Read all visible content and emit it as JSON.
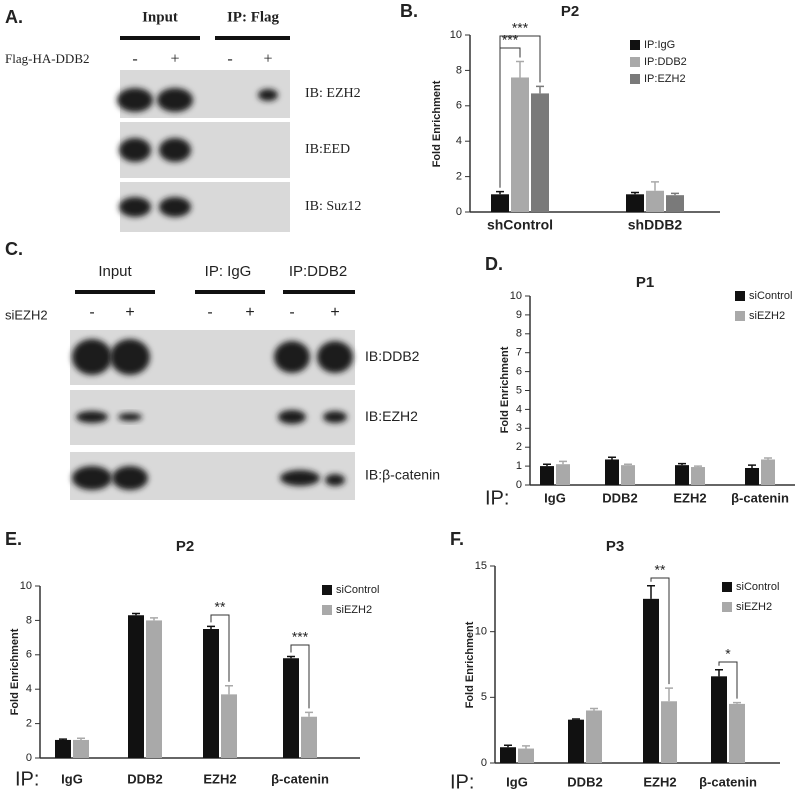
{
  "blots": [
    {
      "label": "A.",
      "groups": [
        "Input",
        "IP: Flag"
      ],
      "condition": "Flag-HA-DDB2",
      "signs": [
        "-",
        "+",
        "-",
        "+"
      ],
      "antibodies": [
        "IB: EZH2",
        "IB:EED",
        "IB: Suz12"
      ]
    },
    {
      "label": "C.",
      "groups": [
        "Input",
        "IP: IgG",
        "IP:DDB2"
      ],
      "condition": "siEZH2",
      "signs": [
        "-",
        "+",
        "-",
        "+",
        "-",
        "+"
      ],
      "antibodies": [
        "IB:DDB2",
        "IB:EZH2",
        "IB:β-catenin"
      ]
    }
  ],
  "chart_data": [
    {
      "label": "B.",
      "type": "bar",
      "title": "P2",
      "ylabel": "Fold Enrichment",
      "categories": [
        "shControl",
        "shDDB2"
      ],
      "series": [
        {
          "name": "IP:IgG",
          "color": "#111111",
          "values": [
            1.0,
            1.0
          ],
          "errors": [
            0.15,
            0.1
          ]
        },
        {
          "name": "IP:DDB2",
          "color": "#a9a9a9",
          "values": [
            7.6,
            1.2
          ],
          "errors": [
            0.9,
            0.5
          ]
        },
        {
          "name": "IP:EZH2",
          "color": "#7a7a7a",
          "values": [
            6.7,
            0.95
          ],
          "errors": [
            0.4,
            0.1
          ]
        }
      ],
      "ylim": [
        0,
        10
      ],
      "yticks": [
        0,
        2,
        4,
        6,
        8,
        10
      ],
      "annotations": [
        "***",
        "***"
      ],
      "legend": "upper right"
    },
    {
      "label": "D.",
      "type": "bar",
      "title": "P1",
      "ylabel": "Fold Enrichment",
      "xlabel": "IP:",
      "categories": [
        "IgG",
        "DDB2",
        "EZH2",
        "β-catenin"
      ],
      "series": [
        {
          "name": "siControl",
          "color": "#111111",
          "values": [
            1.0,
            1.35,
            1.05,
            0.9
          ],
          "errors": [
            0.1,
            0.12,
            0.08,
            0.15
          ]
        },
        {
          "name": "siEZH2",
          "color": "#a9a9a9",
          "values": [
            1.1,
            1.05,
            0.95,
            1.35
          ],
          "errors": [
            0.15,
            0.05,
            0.05,
            0.08
          ]
        }
      ],
      "ylim": [
        0,
        10
      ],
      "yticks": [
        0,
        1,
        2,
        3,
        4,
        5,
        6,
        7,
        8,
        9,
        10
      ],
      "annotations": [],
      "legend": "upper right"
    },
    {
      "label": "E.",
      "type": "bar",
      "title": "P2",
      "ylabel": "Fold Enrichment",
      "xlabel": "IP:",
      "categories": [
        "IgG",
        "DDB2",
        "EZH2",
        "β-catenin"
      ],
      "series": [
        {
          "name": "siControl",
          "color": "#111111",
          "values": [
            1.05,
            8.3,
            7.5,
            5.8
          ],
          "errors": [
            0.05,
            0.1,
            0.15,
            0.1
          ]
        },
        {
          "name": "siEZH2",
          "color": "#a9a9a9",
          "values": [
            1.05,
            8.0,
            3.7,
            2.4
          ],
          "errors": [
            0.1,
            0.15,
            0.5,
            0.25
          ]
        }
      ],
      "ylim": [
        0,
        10
      ],
      "yticks": [
        0,
        2,
        4,
        6,
        8,
        10
      ],
      "annotations": [
        "**",
        "***"
      ],
      "legend": "upper right"
    },
    {
      "label": "F.",
      "type": "bar",
      "title": "P3",
      "ylabel": "Fold Enrichment",
      "xlabel": "IP:",
      "categories": [
        "IgG",
        "DDB2",
        "EZH2",
        "β-catenin"
      ],
      "series": [
        {
          "name": "siControl",
          "color": "#111111",
          "values": [
            1.2,
            3.3,
            12.5,
            6.6
          ],
          "errors": [
            0.15,
            0.05,
            1.0,
            0.5
          ]
        },
        {
          "name": "siEZH2",
          "color": "#a9a9a9",
          "values": [
            1.1,
            4.0,
            4.7,
            4.5
          ],
          "errors": [
            0.2,
            0.15,
            1.0,
            0.1
          ]
        }
      ],
      "ylim": [
        0,
        15
      ],
      "yticks": [
        0,
        5,
        10,
        15
      ],
      "annotations": [
        "**",
        "*"
      ],
      "legend": "upper right"
    }
  ]
}
